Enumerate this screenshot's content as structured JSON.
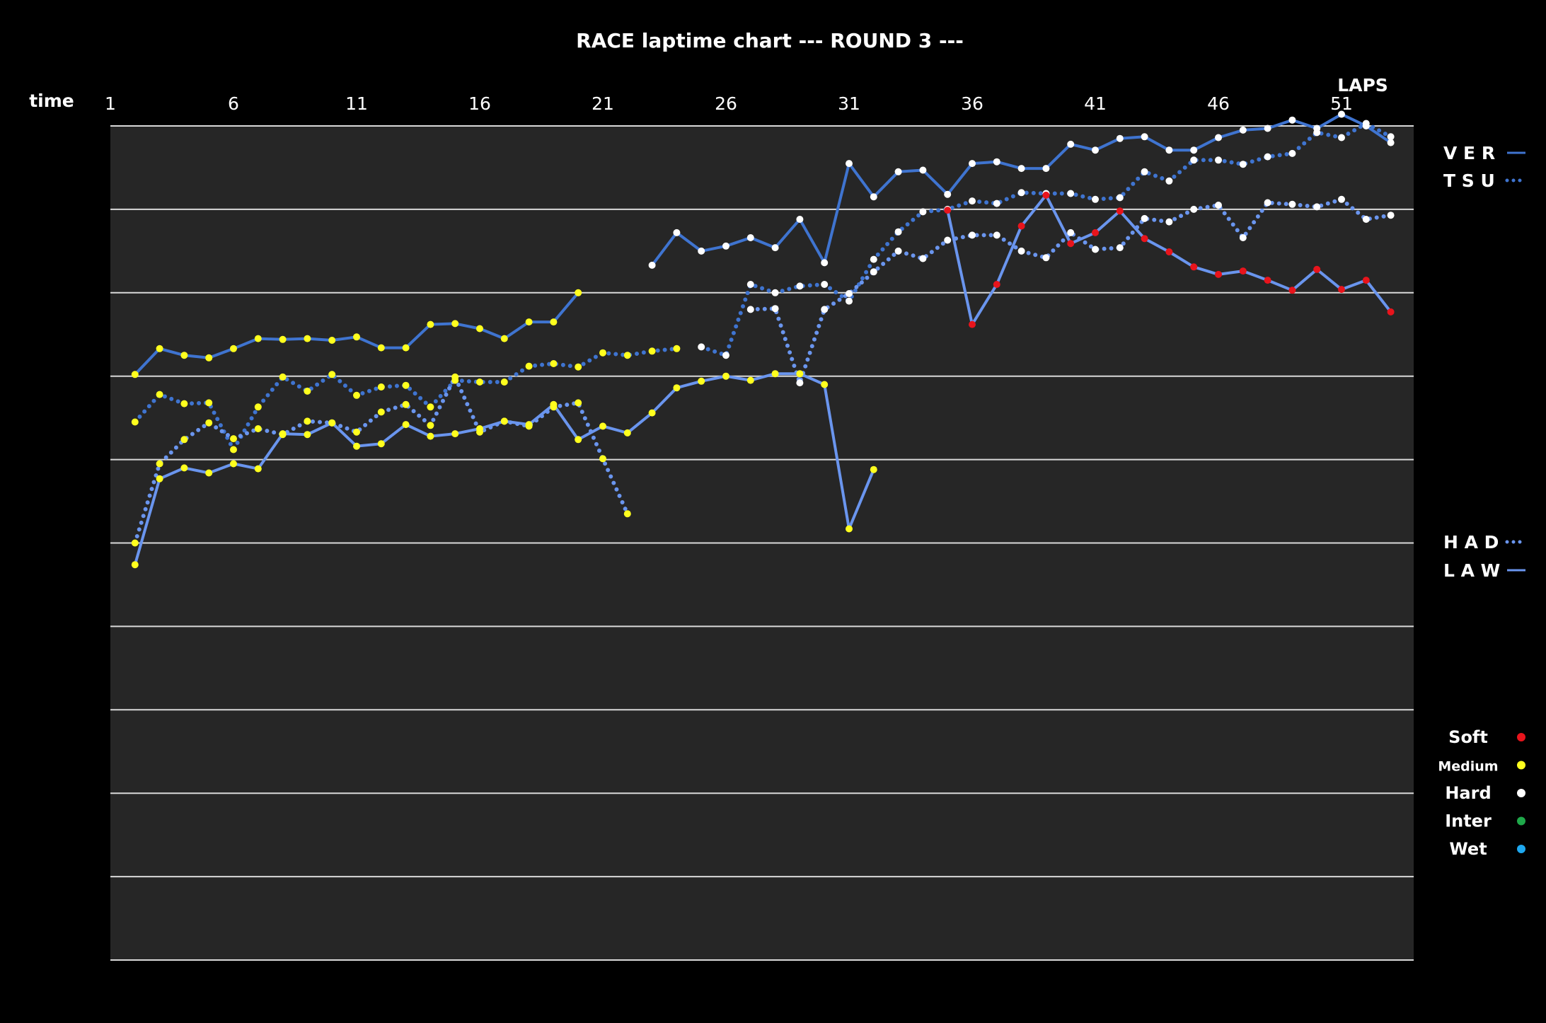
{
  "chart_data": {
    "type": "line",
    "title": "RACE laptime chart --- ROUND 3 ---",
    "xlabel": "LAPS",
    "ylabel": "time",
    "x_ticks": [
      "1",
      "6",
      "11",
      "16",
      "21",
      "26",
      "31",
      "36",
      "41",
      "46",
      "51"
    ],
    "xlim": [
      1,
      54
    ],
    "ylim": [
      0,
      10
    ],
    "y_unit_note": "",
    "grid": true,
    "background": "#262626",
    "legend_top": [
      {
        "name": "V E R",
        "style": "solid",
        "color": "#3f74d0"
      },
      {
        "name": "T S U",
        "style": "dotted",
        "color": "#3f74d0"
      }
    ],
    "legend_mid": [
      {
        "name": "H A D",
        "style": "dotted",
        "color": "#6a95ee"
      },
      {
        "name": "L A W",
        "style": "solid",
        "color": "#6a95ee"
      }
    ],
    "compound_legend": [
      {
        "name": "Soft",
        "color": "#e8141c"
      },
      {
        "name": "Medium",
        "color": "#ffff1e"
      },
      {
        "name": "Hard",
        "color": "#ffffff"
      },
      {
        "name": "Inter",
        "color": "#1fa84a"
      },
      {
        "name": "Wet",
        "color": "#1ea8f0"
      }
    ],
    "compound_colors": {
      "S": "#e8141c",
      "M": "#ffff1e",
      "H": "#ffffff",
      "I": "#1fa84a",
      "W": "#1ea8f0"
    },
    "series": [
      {
        "name": "VER",
        "style": "solid",
        "color": "#3f74d0",
        "points": [
          [
            2,
            7.02,
            "M"
          ],
          [
            3,
            7.33,
            "M"
          ],
          [
            4,
            7.25,
            "M"
          ],
          [
            5,
            7.22,
            "M"
          ],
          [
            6,
            7.33,
            "M"
          ],
          [
            7,
            7.45,
            "M"
          ],
          [
            8,
            7.44,
            "M"
          ],
          [
            9,
            7.45,
            "M"
          ],
          [
            10,
            7.43,
            "M"
          ],
          [
            11,
            7.47,
            "M"
          ],
          [
            12,
            7.34,
            "M"
          ],
          [
            13,
            7.34,
            "M"
          ],
          [
            14,
            7.62,
            "M"
          ],
          [
            15,
            7.63,
            "M"
          ],
          [
            16,
            7.57,
            "M"
          ],
          [
            17,
            7.45,
            "M"
          ],
          [
            18,
            7.65,
            "M"
          ],
          [
            19,
            7.65,
            "M"
          ],
          [
            20,
            8.0,
            "M"
          ]
        ]
      },
      {
        "name": "VER",
        "style": "solid",
        "color": "#3f74d0",
        "points": [
          [
            23,
            8.33,
            "H"
          ],
          [
            24,
            8.72,
            "H"
          ],
          [
            25,
            8.5,
            "H"
          ],
          [
            26,
            8.56,
            "H"
          ],
          [
            27,
            8.66,
            "H"
          ],
          [
            28,
            8.54,
            "H"
          ],
          [
            29,
            8.88,
            "H"
          ],
          [
            30,
            8.36,
            "H"
          ],
          [
            31,
            9.55,
            "H"
          ],
          [
            32,
            9.15,
            "H"
          ],
          [
            33,
            9.45,
            "H"
          ],
          [
            34,
            9.47,
            "H"
          ],
          [
            35,
            9.18,
            "H"
          ],
          [
            36,
            9.55,
            "H"
          ],
          [
            37,
            9.57,
            "H"
          ],
          [
            38,
            9.49,
            "H"
          ],
          [
            39,
            9.49,
            "H"
          ],
          [
            40,
            9.78,
            "H"
          ],
          [
            41,
            9.71,
            "H"
          ],
          [
            42,
            9.85,
            "H"
          ],
          [
            43,
            9.87,
            "H"
          ],
          [
            44,
            9.71,
            "H"
          ],
          [
            45,
            9.71,
            "H"
          ],
          [
            46,
            9.86,
            "H"
          ],
          [
            47,
            9.95,
            "H"
          ],
          [
            48,
            9.97,
            "H"
          ],
          [
            49,
            10.07,
            "H"
          ],
          [
            50,
            9.97,
            "H"
          ],
          [
            51,
            10.14,
            "H"
          ],
          [
            52,
            10.0,
            "H"
          ],
          [
            53,
            9.8,
            "H"
          ]
        ]
      },
      {
        "name": "TSU",
        "style": "dotted",
        "color": "#3f74d0",
        "points": [
          [
            2,
            6.45,
            "M"
          ],
          [
            3,
            6.78,
            "M"
          ],
          [
            4,
            6.67,
            "M"
          ],
          [
            5,
            6.68,
            "M"
          ],
          [
            6,
            6.12,
            "M"
          ],
          [
            7,
            6.63,
            "M"
          ],
          [
            8,
            6.99,
            "M"
          ],
          [
            9,
            6.82,
            "M"
          ],
          [
            10,
            7.02,
            "M"
          ],
          [
            11,
            6.77,
            "M"
          ],
          [
            12,
            6.87,
            "M"
          ],
          [
            13,
            6.89,
            "M"
          ],
          [
            14,
            6.63,
            "M"
          ],
          [
            15,
            6.95,
            "M"
          ],
          [
            16,
            6.93,
            "M"
          ],
          [
            17,
            6.93,
            "M"
          ],
          [
            18,
            7.12,
            "M"
          ],
          [
            19,
            7.15,
            "M"
          ],
          [
            20,
            7.11,
            "M"
          ],
          [
            21,
            7.28,
            "M"
          ],
          [
            22,
            7.25,
            "M"
          ],
          [
            23,
            7.3,
            "M"
          ],
          [
            24,
            7.33,
            "M"
          ]
        ]
      },
      {
        "name": "TSU",
        "style": "dotted",
        "color": "#3f74d0",
        "points": [
          [
            25,
            7.35,
            "H"
          ],
          [
            26,
            7.25,
            "H"
          ],
          [
            27,
            8.1,
            "H"
          ],
          [
            28,
            8.0,
            "H"
          ],
          [
            29,
            8.08,
            "H"
          ],
          [
            30,
            8.1,
            "H"
          ],
          [
            31,
            7.9,
            "H"
          ],
          [
            32,
            8.4,
            "H"
          ],
          [
            33,
            8.73,
            "H"
          ],
          [
            34,
            8.97,
            "H"
          ],
          [
            35,
            9.0,
            "H"
          ],
          [
            36,
            9.1,
            "H"
          ],
          [
            37,
            9.07,
            "H"
          ],
          [
            38,
            9.2,
            "H"
          ],
          [
            39,
            9.19,
            "H"
          ],
          [
            40,
            9.19,
            "H"
          ],
          [
            41,
            9.12,
            "H"
          ],
          [
            42,
            9.14,
            "H"
          ],
          [
            43,
            9.45,
            "H"
          ],
          [
            44,
            9.34,
            "H"
          ],
          [
            45,
            9.59,
            "H"
          ],
          [
            46,
            9.59,
            "H"
          ],
          [
            47,
            9.54,
            "H"
          ],
          [
            48,
            9.63,
            "H"
          ],
          [
            49,
            9.67,
            "H"
          ],
          [
            50,
            9.92,
            "H"
          ],
          [
            51,
            9.86,
            "H"
          ],
          [
            52,
            10.03,
            "H"
          ],
          [
            53,
            9.87,
            "H"
          ]
        ]
      },
      {
        "name": "HAD",
        "style": "dotted",
        "color": "#6a95ee",
        "points": [
          [
            2,
            5.0,
            "M"
          ],
          [
            3,
            5.95,
            "M"
          ],
          [
            4,
            6.24,
            "M"
          ],
          [
            5,
            6.44,
            "M"
          ],
          [
            6,
            6.25,
            "M"
          ],
          [
            7,
            6.37,
            "M"
          ],
          [
            8,
            6.3,
            "M"
          ],
          [
            9,
            6.46,
            "M"
          ],
          [
            10,
            6.44,
            "M"
          ],
          [
            11,
            6.33,
            "M"
          ],
          [
            12,
            6.57,
            "M"
          ],
          [
            13,
            6.66,
            "M"
          ],
          [
            14,
            6.41,
            "M"
          ],
          [
            15,
            6.99,
            "M"
          ],
          [
            16,
            6.33,
            "M"
          ],
          [
            17,
            6.46,
            "M"
          ],
          [
            18,
            6.4,
            "M"
          ],
          [
            19,
            6.63,
            "M"
          ],
          [
            20,
            6.68,
            "M"
          ],
          [
            21,
            6.01,
            "M"
          ],
          [
            22,
            5.35,
            "M"
          ]
        ]
      },
      {
        "name": "HAD",
        "style": "dotted",
        "color": "#6a95ee",
        "points": [
          [
            27,
            7.8,
            "H"
          ],
          [
            28,
            7.81,
            "H"
          ],
          [
            29,
            6.92,
            "H"
          ],
          [
            30,
            7.8,
            "H"
          ],
          [
            31,
            7.99,
            "H"
          ],
          [
            32,
            8.25,
            "H"
          ],
          [
            33,
            8.5,
            "H"
          ],
          [
            34,
            8.41,
            "H"
          ],
          [
            35,
            8.63,
            "H"
          ],
          [
            36,
            8.69,
            "H"
          ],
          [
            37,
            8.69,
            "H"
          ],
          [
            38,
            8.5,
            "H"
          ],
          [
            39,
            8.42,
            "H"
          ],
          [
            40,
            8.72,
            "H"
          ],
          [
            41,
            8.52,
            "H"
          ],
          [
            42,
            8.54,
            "H"
          ],
          [
            43,
            8.89,
            "H"
          ],
          [
            44,
            8.85,
            "H"
          ],
          [
            45,
            9.0,
            "H"
          ],
          [
            46,
            9.05,
            "H"
          ],
          [
            47,
            8.66,
            "H"
          ],
          [
            48,
            9.08,
            "H"
          ],
          [
            49,
            9.06,
            "H"
          ],
          [
            50,
            9.03,
            "H"
          ],
          [
            51,
            9.12,
            "H"
          ],
          [
            52,
            8.88,
            "H"
          ],
          [
            53,
            8.93,
            "H"
          ]
        ]
      },
      {
        "name": "LAW",
        "style": "solid",
        "color": "#6a95ee",
        "points": [
          [
            2,
            4.74,
            "M"
          ],
          [
            3,
            5.77,
            "M"
          ],
          [
            4,
            5.9,
            "M"
          ],
          [
            5,
            5.84,
            "M"
          ],
          [
            6,
            5.95,
            "M"
          ],
          [
            7,
            5.89,
            "M"
          ],
          [
            8,
            6.31,
            "M"
          ],
          [
            9,
            6.3,
            "M"
          ],
          [
            10,
            6.44,
            "M"
          ],
          [
            11,
            6.16,
            "M"
          ],
          [
            12,
            6.19,
            "M"
          ],
          [
            13,
            6.42,
            "M"
          ],
          [
            14,
            6.28,
            "M"
          ],
          [
            15,
            6.31,
            "M"
          ],
          [
            16,
            6.37,
            "M"
          ],
          [
            17,
            6.46,
            "M"
          ],
          [
            18,
            6.42,
            "M"
          ],
          [
            19,
            6.66,
            "M"
          ],
          [
            20,
            6.24,
            "M"
          ],
          [
            21,
            6.4,
            "M"
          ],
          [
            22,
            6.32,
            "M"
          ],
          [
            23,
            6.56,
            "M"
          ],
          [
            24,
            6.86,
            "M"
          ],
          [
            25,
            6.94,
            "M"
          ],
          [
            26,
            7.0,
            "M"
          ],
          [
            27,
            6.95,
            "M"
          ],
          [
            28,
            7.03,
            "M"
          ],
          [
            29,
            7.03,
            "M"
          ],
          [
            30,
            6.9,
            "M"
          ],
          [
            31,
            5.17,
            "M"
          ],
          [
            32,
            5.88,
            "M"
          ]
        ]
      },
      {
        "name": "LAW",
        "style": "solid",
        "color": "#6a95ee",
        "points": [
          [
            35,
            8.99,
            "S"
          ],
          [
            36,
            7.62,
            "S"
          ],
          [
            37,
            8.1,
            "S"
          ],
          [
            38,
            8.8,
            "S"
          ],
          [
            39,
            9.17,
            "S"
          ],
          [
            40,
            8.59,
            "S"
          ],
          [
            41,
            8.72,
            "S"
          ],
          [
            42,
            8.98,
            "S"
          ],
          [
            43,
            8.65,
            "S"
          ],
          [
            44,
            8.49,
            "S"
          ],
          [
            45,
            8.31,
            "S"
          ],
          [
            46,
            8.22,
            "S"
          ],
          [
            47,
            8.26,
            "S"
          ],
          [
            48,
            8.15,
            "S"
          ],
          [
            49,
            8.03,
            "S"
          ],
          [
            50,
            8.28,
            "S"
          ],
          [
            51,
            8.04,
            "S"
          ],
          [
            52,
            8.15,
            "S"
          ],
          [
            53,
            7.77,
            "S"
          ]
        ]
      }
    ]
  }
}
